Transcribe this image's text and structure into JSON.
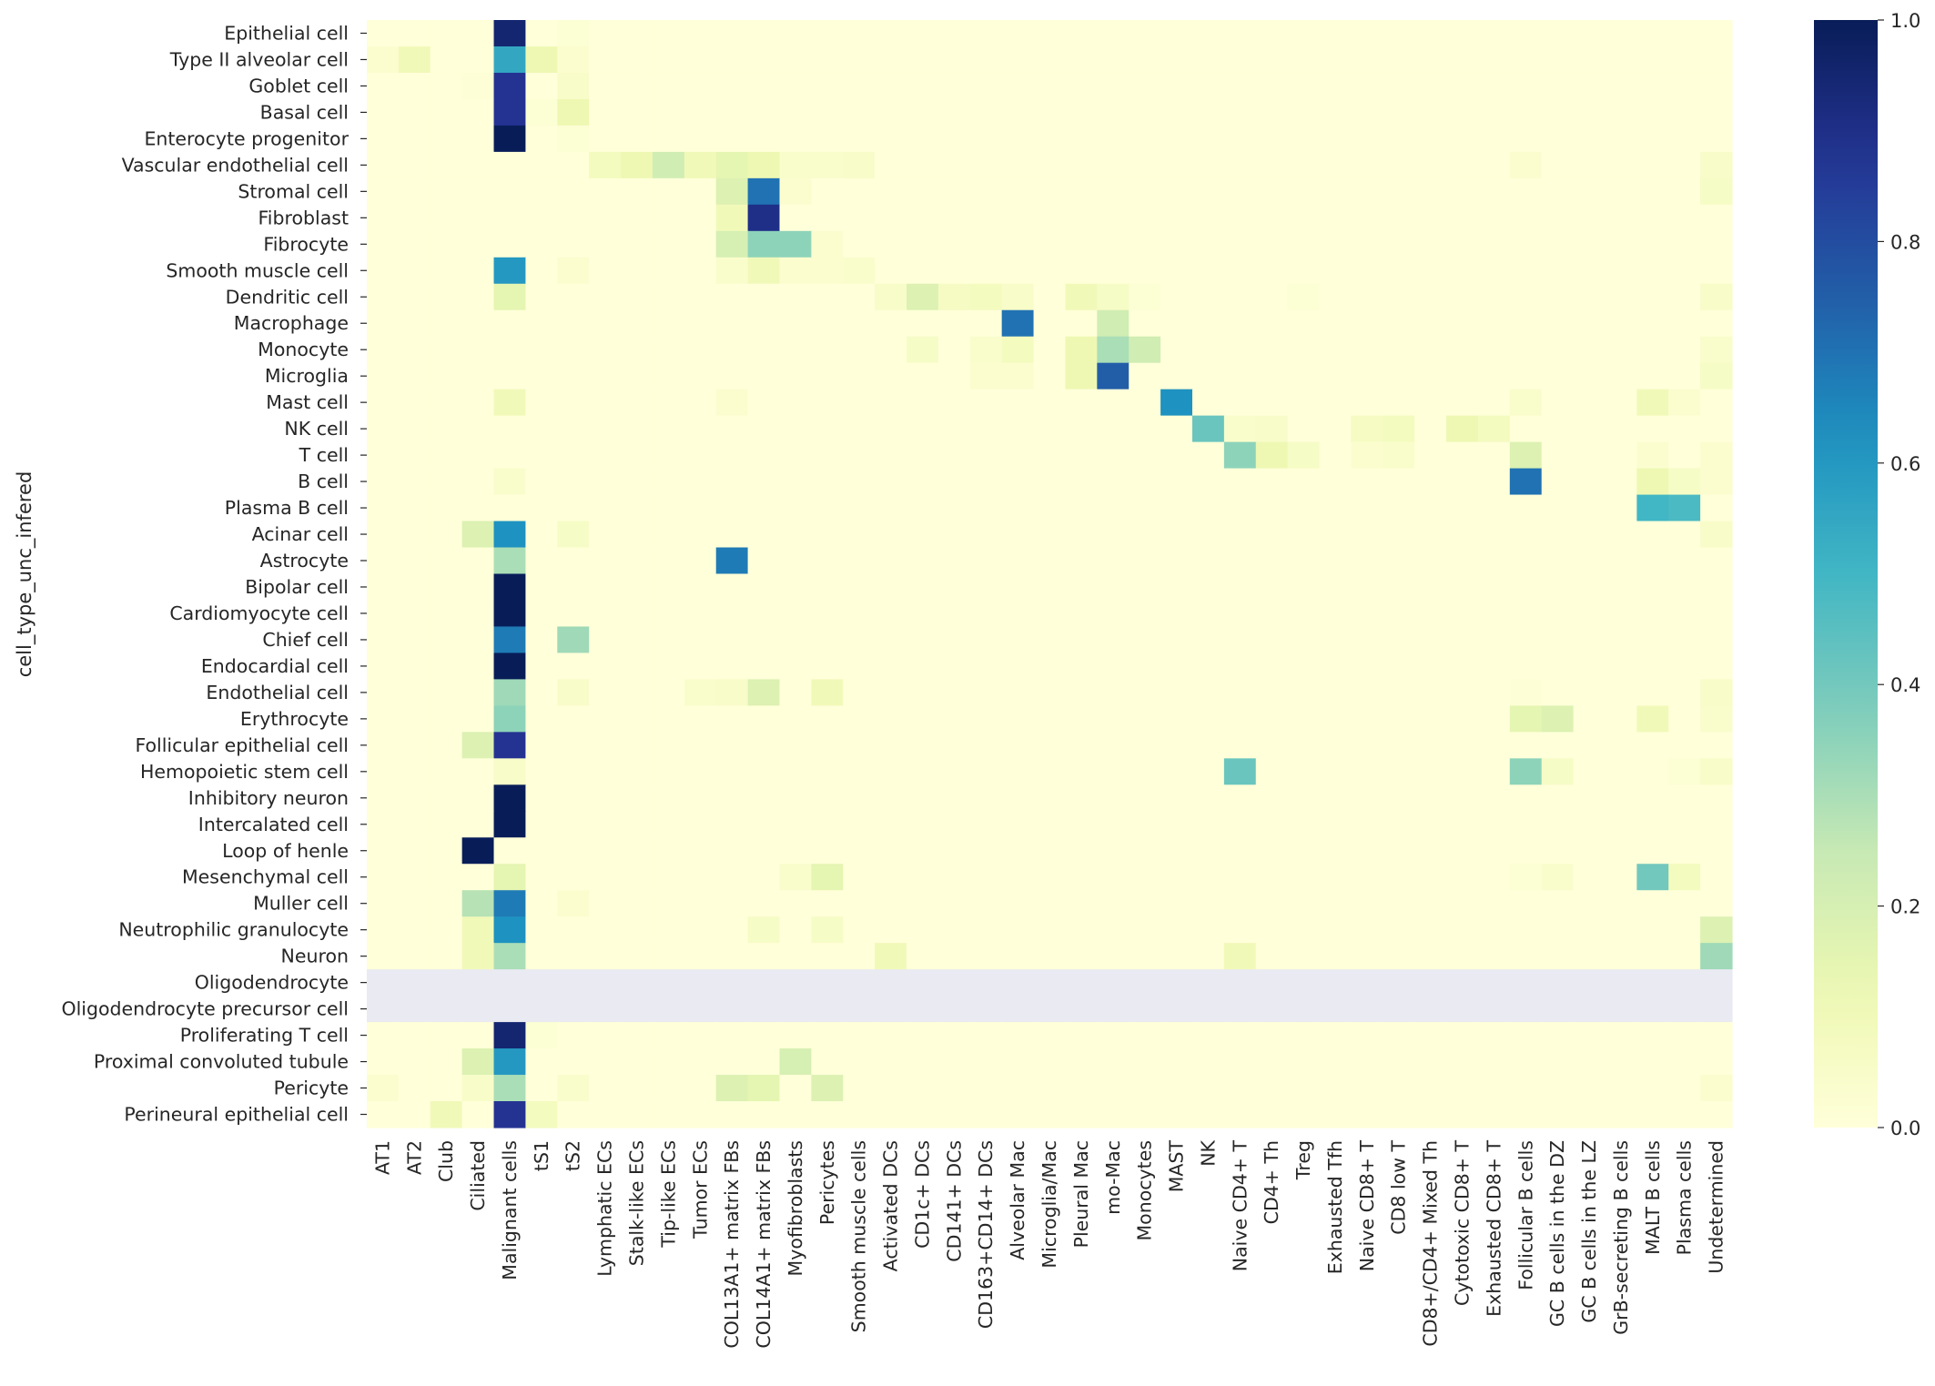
{
  "chart_data": {
    "type": "heatmap",
    "title": "",
    "xlabel": "",
    "ylabel": "cell_type_unc_infered",
    "colormap": "YlGnBu",
    "vmin": 0.0,
    "vmax": 1.0,
    "missing_color": "#eaeaf2",
    "colorbar_ticks": [
      "0.0",
      "0.2",
      "0.4",
      "0.6",
      "0.8",
      "1.0"
    ],
    "colorbar_tick_values": [
      0.0,
      0.2,
      0.4,
      0.6,
      0.8,
      1.0
    ],
    "x_categories": [
      "AT1",
      "AT2",
      "Club",
      "Ciliated",
      "Malignant cells",
      "tS1",
      "tS2",
      "Lymphatic ECs",
      "Stalk-like ECs",
      "Tip-like ECs",
      "Tumor ECs",
      "COL13A1+ matrix FBs",
      "COL14A1+ matrix FBs",
      "Myofibroblasts",
      "Pericytes",
      "Smooth muscle cells",
      "Activated DCs",
      "CD1c+ DCs",
      "CD141+ DCs",
      "CD163+CD14+ DCs",
      "Alveolar Mac",
      "Microglia/Mac",
      "Pleural Mac",
      "mo-Mac",
      "Monocytes",
      "MAST",
      "NK",
      "Naive CD4+ T",
      "CD4+ Th",
      "Treg",
      "Exhausted Tfh",
      "Naive CD8+ T",
      "CD8 low T",
      "CD8+/CD4+ Mixed Th",
      "Cytotoxic CD8+ T",
      "Exhausted CD8+ T",
      "Follicular B cells",
      "GC B cells in the DZ",
      "GC B cells in the LZ",
      "GrB-secreting B cells",
      "MALT B cells",
      "Plasma cells",
      "Undetermined"
    ],
    "y_categories": [
      "Epithelial cell",
      "Type II alveolar cell",
      "Goblet cell",
      "Basal cell",
      "Enterocyte progenitor",
      "Vascular endothelial cell",
      "Stromal cell",
      "Fibroblast",
      "Fibrocyte",
      "Smooth muscle cell",
      "Dendritic cell",
      "Macrophage",
      "Monocyte",
      "Microglia",
      "Mast cell",
      "NK cell",
      "T cell",
      "B cell",
      "Plasma B cell",
      "Acinar cell",
      "Astrocyte",
      "Bipolar cell",
      "Cardiomyocyte cell",
      "Chief cell",
      "Endocardial cell",
      "Endothelial cell",
      "Erythrocyte",
      "Follicular epithelial cell",
      "Hemopoietic stem cell",
      "Inhibitory neuron",
      "Intercalated cell",
      "Loop of henle",
      "Mesenchymal cell",
      "Muller cell",
      "Neutrophilic granulocyte",
      "Neuron",
      "Oligodendrocyte",
      "Oligodendrocyte precursor cell",
      "Proliferating T cell",
      "Proximal convoluted tubule",
      "Pericyte",
      "Perineural epithelial cell"
    ],
    "nonzero_cells": [
      [
        0,
        4,
        0.95
      ],
      [
        0,
        6,
        0.02
      ],
      [
        1,
        0,
        0.03
      ],
      [
        1,
        1,
        0.1
      ],
      [
        1,
        4,
        0.55
      ],
      [
        1,
        5,
        0.12
      ],
      [
        1,
        6,
        0.03
      ],
      [
        2,
        3,
        0.01
      ],
      [
        2,
        4,
        0.88
      ],
      [
        2,
        6,
        0.05
      ],
      [
        3,
        4,
        0.88
      ],
      [
        3,
        5,
        0.02
      ],
      [
        3,
        6,
        0.12
      ],
      [
        4,
        4,
        1.0
      ],
      [
        4,
        6,
        0.02
      ],
      [
        5,
        7,
        0.08
      ],
      [
        5,
        8,
        0.12
      ],
      [
        5,
        9,
        0.22
      ],
      [
        5,
        10,
        0.1
      ],
      [
        5,
        11,
        0.15
      ],
      [
        5,
        12,
        0.12
      ],
      [
        5,
        13,
        0.04
      ],
      [
        5,
        14,
        0.04
      ],
      [
        5,
        15,
        0.05
      ],
      [
        5,
        36,
        0.03
      ],
      [
        5,
        42,
        0.05
      ],
      [
        6,
        11,
        0.18
      ],
      [
        6,
        12,
        0.7
      ],
      [
        6,
        13,
        0.03
      ],
      [
        6,
        42,
        0.06
      ],
      [
        7,
        11,
        0.1
      ],
      [
        7,
        12,
        0.9
      ],
      [
        8,
        11,
        0.2
      ],
      [
        8,
        12,
        0.35
      ],
      [
        8,
        13,
        0.35
      ],
      [
        8,
        14,
        0.03
      ],
      [
        9,
        4,
        0.6
      ],
      [
        9,
        6,
        0.03
      ],
      [
        9,
        11,
        0.04
      ],
      [
        9,
        12,
        0.1
      ],
      [
        9,
        13,
        0.03
      ],
      [
        9,
        14,
        0.03
      ],
      [
        9,
        15,
        0.04
      ],
      [
        10,
        4,
        0.15
      ],
      [
        10,
        16,
        0.05
      ],
      [
        10,
        17,
        0.18
      ],
      [
        10,
        18,
        0.07
      ],
      [
        10,
        19,
        0.08
      ],
      [
        10,
        20,
        0.05
      ],
      [
        10,
        22,
        0.1
      ],
      [
        10,
        23,
        0.06
      ],
      [
        10,
        24,
        0.02
      ],
      [
        10,
        29,
        0.02
      ],
      [
        10,
        42,
        0.05
      ],
      [
        11,
        20,
        0.7
      ],
      [
        11,
        23,
        0.22
      ],
      [
        12,
        17,
        0.06
      ],
      [
        12,
        19,
        0.04
      ],
      [
        12,
        20,
        0.08
      ],
      [
        12,
        22,
        0.12
      ],
      [
        12,
        23,
        0.3
      ],
      [
        12,
        24,
        0.22
      ],
      [
        12,
        42,
        0.04
      ],
      [
        13,
        19,
        0.03
      ],
      [
        13,
        20,
        0.03
      ],
      [
        13,
        22,
        0.12
      ],
      [
        13,
        23,
        0.75
      ],
      [
        13,
        42,
        0.06
      ],
      [
        14,
        4,
        0.1
      ],
      [
        14,
        11,
        0.03
      ],
      [
        14,
        25,
        0.62
      ],
      [
        14,
        36,
        0.04
      ],
      [
        14,
        40,
        0.1
      ],
      [
        14,
        41,
        0.03
      ],
      [
        15,
        26,
        0.42
      ],
      [
        15,
        27,
        0.04
      ],
      [
        15,
        28,
        0.05
      ],
      [
        15,
        31,
        0.07
      ],
      [
        15,
        32,
        0.08
      ],
      [
        15,
        34,
        0.12
      ],
      [
        15,
        35,
        0.08
      ],
      [
        16,
        27,
        0.35
      ],
      [
        16,
        28,
        0.12
      ],
      [
        16,
        29,
        0.06
      ],
      [
        16,
        31,
        0.03
      ],
      [
        16,
        32,
        0.04
      ],
      [
        16,
        36,
        0.18
      ],
      [
        16,
        40,
        0.03
      ],
      [
        16,
        42,
        0.03
      ],
      [
        17,
        4,
        0.04
      ],
      [
        17,
        36,
        0.7
      ],
      [
        17,
        40,
        0.12
      ],
      [
        17,
        41,
        0.06
      ],
      [
        17,
        42,
        0.03
      ],
      [
        18,
        40,
        0.5
      ],
      [
        18,
        41,
        0.48
      ],
      [
        19,
        3,
        0.18
      ],
      [
        19,
        4,
        0.62
      ],
      [
        19,
        6,
        0.06
      ],
      [
        19,
        42,
        0.05
      ],
      [
        20,
        4,
        0.3
      ],
      [
        20,
        11,
        0.68
      ],
      [
        21,
        4,
        1.0
      ],
      [
        22,
        4,
        1.0
      ],
      [
        23,
        4,
        0.68
      ],
      [
        23,
        6,
        0.32
      ],
      [
        24,
        4,
        1.0
      ],
      [
        25,
        4,
        0.32
      ],
      [
        25,
        6,
        0.05
      ],
      [
        25,
        10,
        0.04
      ],
      [
        25,
        11,
        0.05
      ],
      [
        25,
        12,
        0.18
      ],
      [
        25,
        14,
        0.1
      ],
      [
        25,
        36,
        0.01
      ],
      [
        25,
        42,
        0.05
      ],
      [
        26,
        4,
        0.35
      ],
      [
        26,
        36,
        0.15
      ],
      [
        26,
        37,
        0.18
      ],
      [
        26,
        40,
        0.1
      ],
      [
        26,
        42,
        0.04
      ],
      [
        27,
        3,
        0.18
      ],
      [
        27,
        4,
        0.88
      ],
      [
        28,
        4,
        0.05
      ],
      [
        28,
        27,
        0.42
      ],
      [
        28,
        36,
        0.35
      ],
      [
        28,
        37,
        0.06
      ],
      [
        28,
        41,
        0.02
      ],
      [
        28,
        42,
        0.05
      ],
      [
        29,
        4,
        1.0
      ],
      [
        30,
        4,
        1.0
      ],
      [
        31,
        3,
        1.0
      ],
      [
        31,
        4,
        0.0
      ],
      [
        32,
        4,
        0.15
      ],
      [
        32,
        36,
        0.02
      ],
      [
        32,
        37,
        0.04
      ],
      [
        32,
        13,
        0.04
      ],
      [
        32,
        14,
        0.15
      ],
      [
        32,
        40,
        0.4
      ],
      [
        32,
        41,
        0.08
      ],
      [
        33,
        3,
        0.28
      ],
      [
        33,
        4,
        0.68
      ],
      [
        33,
        6,
        0.03
      ],
      [
        34,
        3,
        0.1
      ],
      [
        34,
        4,
        0.62
      ],
      [
        34,
        12,
        0.06
      ],
      [
        34,
        14,
        0.06
      ],
      [
        34,
        42,
        0.18
      ],
      [
        35,
        3,
        0.1
      ],
      [
        35,
        4,
        0.3
      ],
      [
        35,
        16,
        0.1
      ],
      [
        35,
        27,
        0.1
      ],
      [
        35,
        42,
        0.32
      ],
      [
        36,
        -1,
        null
      ],
      [
        37,
        -1,
        null
      ],
      [
        38,
        4,
        0.95
      ],
      [
        38,
        5,
        0.02
      ],
      [
        39,
        3,
        0.18
      ],
      [
        39,
        4,
        0.6
      ],
      [
        39,
        13,
        0.2
      ],
      [
        40,
        0,
        0.03
      ],
      [
        40,
        3,
        0.05
      ],
      [
        40,
        4,
        0.3
      ],
      [
        40,
        6,
        0.04
      ],
      [
        40,
        11,
        0.18
      ],
      [
        40,
        12,
        0.15
      ],
      [
        40,
        14,
        0.18
      ],
      [
        40,
        42,
        0.03
      ],
      [
        41,
        2,
        0.1
      ],
      [
        41,
        4,
        0.88
      ],
      [
        41,
        5,
        0.08
      ]
    ]
  }
}
